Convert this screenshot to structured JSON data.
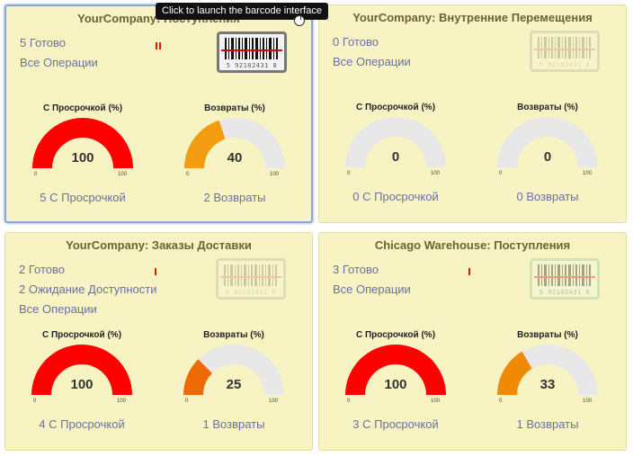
{
  "tooltip": {
    "text": "Click to launch the barcode interface"
  },
  "barcode": {
    "number": "5 92102431 8"
  },
  "gauge_labels": {
    "late": "С Просрочкой (%)",
    "returns": "Возвраты (%)",
    "min": "0",
    "max": "100"
  },
  "colors": {
    "red": "#ff0000",
    "orange": "#f39c12",
    "dark_orange": "#ee6a05",
    "mid_orange": "#f08a05",
    "track": "#e8e8e8"
  },
  "cards": [
    {
      "title": "YourCompany: Поступления",
      "links": [
        "5 Готово",
        "Все Операции"
      ],
      "gauge_late": {
        "value": 100,
        "display": "100",
        "color": "#ff0000",
        "footer": "5 С Просрочкой"
      },
      "gauge_returns": {
        "value": 40,
        "display": "40",
        "color": "#f39c12",
        "footer": "2 Возвраты"
      }
    },
    {
      "title": "YourCompany: Внутренние Перемещения",
      "links": [
        "0 Готово",
        "Все Операции"
      ],
      "gauge_late": {
        "value": 0,
        "display": "0",
        "color": "#ff0000",
        "footer": "0 С Просрочкой"
      },
      "gauge_returns": {
        "value": 0,
        "display": "0",
        "color": "#f39c12",
        "footer": "0 Возвраты"
      }
    },
    {
      "title": "YourCompany: Заказы Доставки",
      "links": [
        "2 Готово",
        "2 Ожидание Доступности",
        "Все Операции"
      ],
      "gauge_late": {
        "value": 100,
        "display": "100",
        "color": "#ff0000",
        "footer": "4 С Просрочкой"
      },
      "gauge_returns": {
        "value": 25,
        "display": "25",
        "color": "#ee6a05",
        "footer": "1 Возвраты"
      }
    },
    {
      "title": "Chicago Warehouse: Поступления",
      "links": [
        "3 Готово",
        "Все Операции"
      ],
      "gauge_late": {
        "value": 100,
        "display": "100",
        "color": "#ff0000",
        "footer": "3 С Просрочкой"
      },
      "gauge_returns": {
        "value": 33,
        "display": "33",
        "color": "#f08a05",
        "footer": "1 Возвраты"
      }
    }
  ]
}
